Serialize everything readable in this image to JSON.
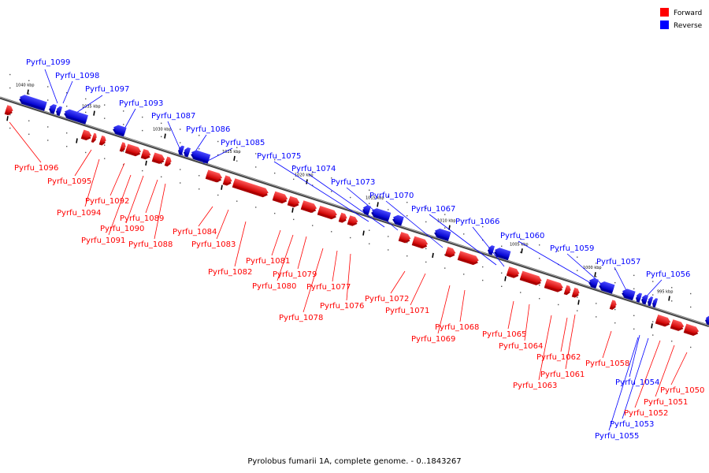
{
  "caption": "Pyrolobus fumarii 1A, complete genome. - 0..1843267",
  "legend": [
    {
      "label": "Forward",
      "color": "#ff0000"
    },
    {
      "label": "Reverse",
      "color": "#0000ff"
    }
  ],
  "colors": {
    "forward": "#ff0000",
    "reverse": "#0000ff",
    "backbone": "#888888"
  },
  "ticks": [
    "1040 kbp",
    "1035 kbp",
    "1030 kbp",
    "1025 kbp",
    "1020 kbp",
    "1015 kbp",
    "1010 kbp",
    "1005 kbp",
    "1000 kbp",
    "995 kbp"
  ],
  "genes": [
    {
      "name": "Pyrfu_1099",
      "strand": "reverse"
    },
    {
      "name": "Pyrfu_1098",
      "strand": "reverse"
    },
    {
      "name": "Pyrfu_1097",
      "strand": "reverse"
    },
    {
      "name": "Pyrfu_1093",
      "strand": "reverse"
    },
    {
      "name": "Pyrfu_1087",
      "strand": "reverse"
    },
    {
      "name": "Pyrfu_1086",
      "strand": "reverse"
    },
    {
      "name": "Pyrfu_1085",
      "strand": "reverse"
    },
    {
      "name": "Pyrfu_1075",
      "strand": "reverse"
    },
    {
      "name": "Pyrfu_1074",
      "strand": "reverse"
    },
    {
      "name": "Pyrfu_1073",
      "strand": "reverse"
    },
    {
      "name": "Pyrfu_1070",
      "strand": "reverse"
    },
    {
      "name": "Pyrfu_1067",
      "strand": "reverse"
    },
    {
      "name": "Pyrfu_1066",
      "strand": "reverse"
    },
    {
      "name": "Pyrfu_1060",
      "strand": "reverse"
    },
    {
      "name": "Pyrfu_1059",
      "strand": "reverse"
    },
    {
      "name": "Pyrfu_1057",
      "strand": "reverse"
    },
    {
      "name": "Pyrfu_1056",
      "strand": "reverse"
    },
    {
      "name": "Pyrfu_1096",
      "strand": "forward"
    },
    {
      "name": "Pyrfu_1095",
      "strand": "forward"
    },
    {
      "name": "Pyrfu_1092",
      "strand": "forward"
    },
    {
      "name": "Pyrfu_1094",
      "strand": "forward"
    },
    {
      "name": "Pyrfu_1089",
      "strand": "forward"
    },
    {
      "name": "Pyrfu_1090",
      "strand": "forward"
    },
    {
      "name": "Pyrfu_1091",
      "strand": "forward"
    },
    {
      "name": "Pyrfu_1088",
      "strand": "forward"
    },
    {
      "name": "Pyrfu_1084",
      "strand": "forward"
    },
    {
      "name": "Pyrfu_1083",
      "strand": "forward"
    },
    {
      "name": "Pyrfu_1082",
      "strand": "forward"
    },
    {
      "name": "Pyrfu_1081",
      "strand": "forward"
    },
    {
      "name": "Pyrfu_1079",
      "strand": "forward"
    },
    {
      "name": "Pyrfu_1080",
      "strand": "forward"
    },
    {
      "name": "Pyrfu_1077",
      "strand": "forward"
    },
    {
      "name": "Pyrfu_1078",
      "strand": "forward"
    },
    {
      "name": "Pyrfu_1076",
      "strand": "forward"
    },
    {
      "name": "Pyrfu_1072",
      "strand": "forward"
    },
    {
      "name": "Pyrfu_1071",
      "strand": "forward"
    },
    {
      "name": "Pyrfu_1068",
      "strand": "forward"
    },
    {
      "name": "Pyrfu_1069",
      "strand": "forward"
    },
    {
      "name": "Pyrfu_1065",
      "strand": "forward"
    },
    {
      "name": "Pyrfu_1064",
      "strand": "forward"
    },
    {
      "name": "Pyrfu_1062",
      "strand": "forward"
    },
    {
      "name": "Pyrfu_1061",
      "strand": "forward"
    },
    {
      "name": "Pyrfu_1063",
      "strand": "forward"
    },
    {
      "name": "Pyrfu_1058",
      "strand": "forward"
    },
    {
      "name": "Pyrfu_1054",
      "strand": "reverse"
    },
    {
      "name": "Pyrfu_1050",
      "strand": "forward"
    },
    {
      "name": "Pyrfu_1051",
      "strand": "forward"
    },
    {
      "name": "Pyrfu_1052",
      "strand": "forward"
    },
    {
      "name": "Pyrfu_1053",
      "strand": "reverse"
    },
    {
      "name": "Pyrfu_1055",
      "strand": "reverse"
    }
  ]
}
